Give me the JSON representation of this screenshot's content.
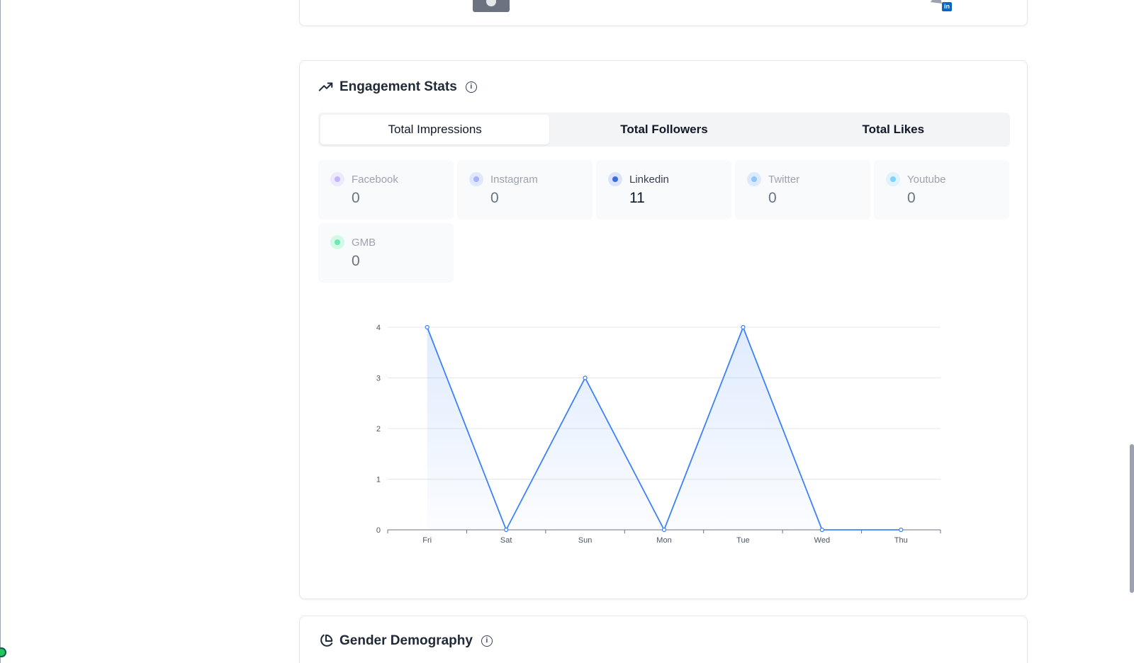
{
  "engagement": {
    "title": "Engagement Stats",
    "tabs": [
      {
        "label": "Total Impressions",
        "active": true
      },
      {
        "label": "Total Followers",
        "active": false
      },
      {
        "label": "Total Likes",
        "active": false
      }
    ],
    "platforms": [
      {
        "name": "Facebook",
        "value": "0",
        "color": "#c4b5fd",
        "bg": "#ede9fe",
        "active": false
      },
      {
        "name": "Instagram",
        "value": "0",
        "color": "#a5b4fc",
        "bg": "#e0e7ff",
        "active": false
      },
      {
        "name": "Linkedin",
        "value": "11",
        "color": "#3b6fe0",
        "bg": "#dbe4fb",
        "active": true
      },
      {
        "name": "Twitter",
        "value": "0",
        "color": "#93c5fd",
        "bg": "#dbeafe",
        "active": false
      },
      {
        "name": "Youtube",
        "value": "0",
        "color": "#7dd3fc",
        "bg": "#e0f2fe",
        "active": false
      },
      {
        "name": "GMB",
        "value": "0",
        "color": "#6ee7b7",
        "bg": "#d1fae5",
        "active": false
      }
    ]
  },
  "chart_data": {
    "type": "area",
    "categories": [
      "Fri",
      "Sat",
      "Sun",
      "Mon",
      "Tue",
      "Wed",
      "Thu"
    ],
    "values": [
      4,
      0,
      3,
      0,
      4,
      0,
      0
    ],
    "yticks": [
      0,
      1,
      2,
      3,
      4
    ],
    "ylim": [
      0,
      4
    ],
    "grid": true,
    "color": "#3b82f6"
  },
  "gender": {
    "title": "Gender Demography"
  },
  "icons": {
    "trend": "trending-up-icon",
    "info": "info-icon",
    "pie": "pie-chart-icon"
  },
  "linkedin_badge": "in"
}
